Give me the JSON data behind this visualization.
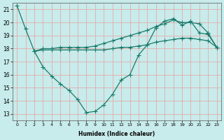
{
  "xlabel": "Humidex (Indice chaleur)",
  "xlim": [
    -0.5,
    23.5
  ],
  "ylim": [
    12.5,
    21.5
  ],
  "yticks": [
    13,
    14,
    15,
    16,
    17,
    18,
    19,
    20,
    21
  ],
  "xticks": [
    0,
    1,
    2,
    3,
    4,
    5,
    6,
    7,
    8,
    9,
    10,
    11,
    12,
    13,
    14,
    15,
    16,
    17,
    18,
    19,
    20,
    21,
    22,
    23
  ],
  "xtick_labels": [
    "0",
    "1",
    "2",
    "3",
    "4",
    "5",
    "6",
    "7",
    "8",
    "9",
    "10",
    "11",
    "12",
    "13",
    "14",
    "15",
    "16",
    "17",
    "18",
    "19",
    "20",
    "21",
    "22",
    "23"
  ],
  "line_color": "#1A7A6A",
  "bg_color": "#C8EBEB",
  "grid_color": "#E8A0A0",
  "line1_x": [
    0,
    1,
    2,
    3,
    4,
    5,
    6,
    7,
    8,
    9,
    10,
    11,
    12,
    13,
    14,
    15,
    16,
    17,
    18,
    19,
    20,
    21,
    22,
    23
  ],
  "line1_y": [
    21.3,
    19.5,
    17.8,
    16.6,
    15.9,
    15.3,
    14.8,
    14.1,
    13.1,
    13.2,
    13.7,
    14.5,
    15.6,
    16.0,
    17.5,
    18.3,
    19.6,
    20.1,
    20.3,
    19.8,
    20.1,
    19.2,
    19.1,
    18.1
  ],
  "line2_x": [
    2,
    3,
    4,
    5,
    6,
    7,
    8,
    9,
    10,
    11,
    12,
    13,
    14,
    15,
    16,
    17,
    18,
    19,
    20,
    21,
    22,
    23
  ],
  "line2_y": [
    17.8,
    18.0,
    18.0,
    18.1,
    18.1,
    18.1,
    18.1,
    18.2,
    18.4,
    18.6,
    18.8,
    19.0,
    19.2,
    19.4,
    19.7,
    19.9,
    20.2,
    20.0,
    20.0,
    19.9,
    19.2,
    18.1
  ],
  "line3_x": [
    2,
    3,
    4,
    5,
    6,
    7,
    8,
    9,
    10,
    11,
    12,
    13,
    14,
    15,
    16,
    17,
    18,
    19,
    20,
    21,
    22,
    23
  ],
  "line3_y": [
    17.8,
    17.9,
    17.9,
    17.9,
    17.9,
    17.9,
    17.9,
    17.9,
    17.9,
    18.0,
    18.1,
    18.1,
    18.2,
    18.3,
    18.5,
    18.6,
    18.7,
    18.8,
    18.8,
    18.7,
    18.6,
    18.1
  ],
  "marker_size": 3,
  "marker": "+",
  "line_width": 0.9
}
